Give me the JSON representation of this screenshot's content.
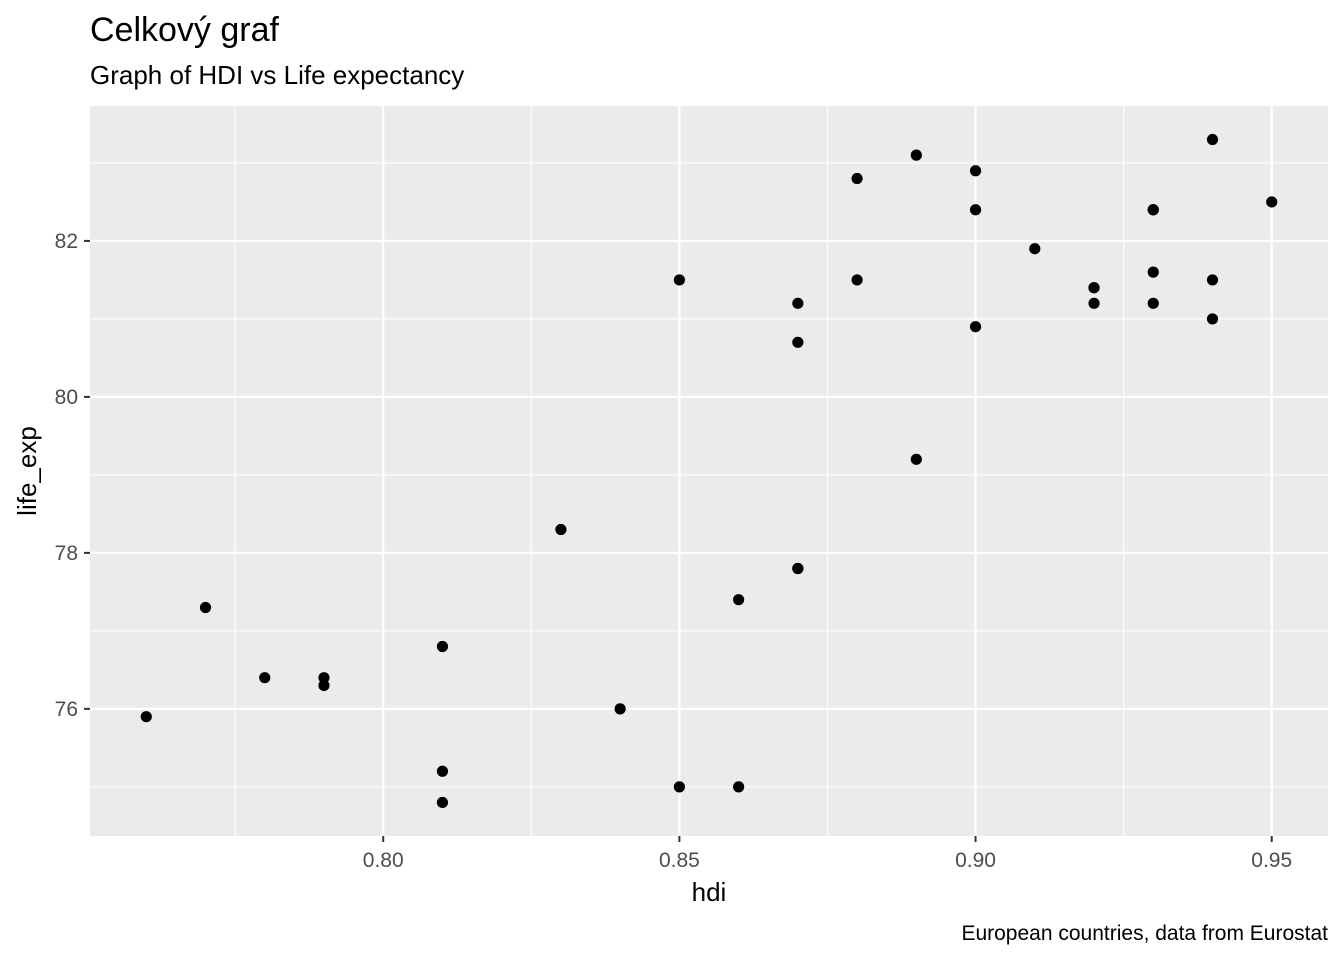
{
  "chart_data": {
    "type": "scatter",
    "title": "Celkový graf",
    "subtitle": "Graph of HDI vs Life expectancy",
    "xlabel": "hdi",
    "ylabel": "life_exp",
    "caption": "European countries, data from Eurostat",
    "xlim": [
      0.7505,
      0.9595
    ],
    "ylim": [
      74.37,
      83.73
    ],
    "x_ticks": [
      0.8,
      0.85,
      0.9,
      0.95
    ],
    "x_tick_labels": [
      "0.80",
      "0.85",
      "0.90",
      "0.95"
    ],
    "y_ticks": [
      76,
      78,
      80,
      82
    ],
    "y_tick_labels": [
      "76",
      "78",
      "80",
      "82"
    ],
    "grid": true,
    "colors": {
      "panel_background": "#ebebeb",
      "grid": "#ffffff",
      "point": "#000000"
    },
    "points": [
      {
        "x": 0.76,
        "y": 75.9
      },
      {
        "x": 0.77,
        "y": 77.3
      },
      {
        "x": 0.78,
        "y": 76.4
      },
      {
        "x": 0.79,
        "y": 76.4
      },
      {
        "x": 0.79,
        "y": 76.3
      },
      {
        "x": 0.81,
        "y": 76.8
      },
      {
        "x": 0.81,
        "y": 75.2
      },
      {
        "x": 0.81,
        "y": 74.8
      },
      {
        "x": 0.83,
        "y": 78.3
      },
      {
        "x": 0.84,
        "y": 76.0
      },
      {
        "x": 0.85,
        "y": 81.5
      },
      {
        "x": 0.85,
        "y": 75.0
      },
      {
        "x": 0.86,
        "y": 77.4
      },
      {
        "x": 0.86,
        "y": 75.0
      },
      {
        "x": 0.87,
        "y": 81.2
      },
      {
        "x": 0.87,
        "y": 80.7
      },
      {
        "x": 0.87,
        "y": 77.8
      },
      {
        "x": 0.87,
        "y": 77.8
      },
      {
        "x": 0.88,
        "y": 82.8
      },
      {
        "x": 0.88,
        "y": 81.5
      },
      {
        "x": 0.89,
        "y": 83.1
      },
      {
        "x": 0.89,
        "y": 79.2
      },
      {
        "x": 0.9,
        "y": 82.9
      },
      {
        "x": 0.9,
        "y": 82.4
      },
      {
        "x": 0.9,
        "y": 80.9
      },
      {
        "x": 0.91,
        "y": 81.9
      },
      {
        "x": 0.92,
        "y": 81.4
      },
      {
        "x": 0.92,
        "y": 81.4
      },
      {
        "x": 0.92,
        "y": 81.2
      },
      {
        "x": 0.93,
        "y": 82.4
      },
      {
        "x": 0.93,
        "y": 82.4
      },
      {
        "x": 0.93,
        "y": 81.6
      },
      {
        "x": 0.93,
        "y": 81.2
      },
      {
        "x": 0.94,
        "y": 83.3
      },
      {
        "x": 0.94,
        "y": 81.5
      },
      {
        "x": 0.94,
        "y": 81.0
      },
      {
        "x": 0.95,
        "y": 82.5
      }
    ]
  }
}
